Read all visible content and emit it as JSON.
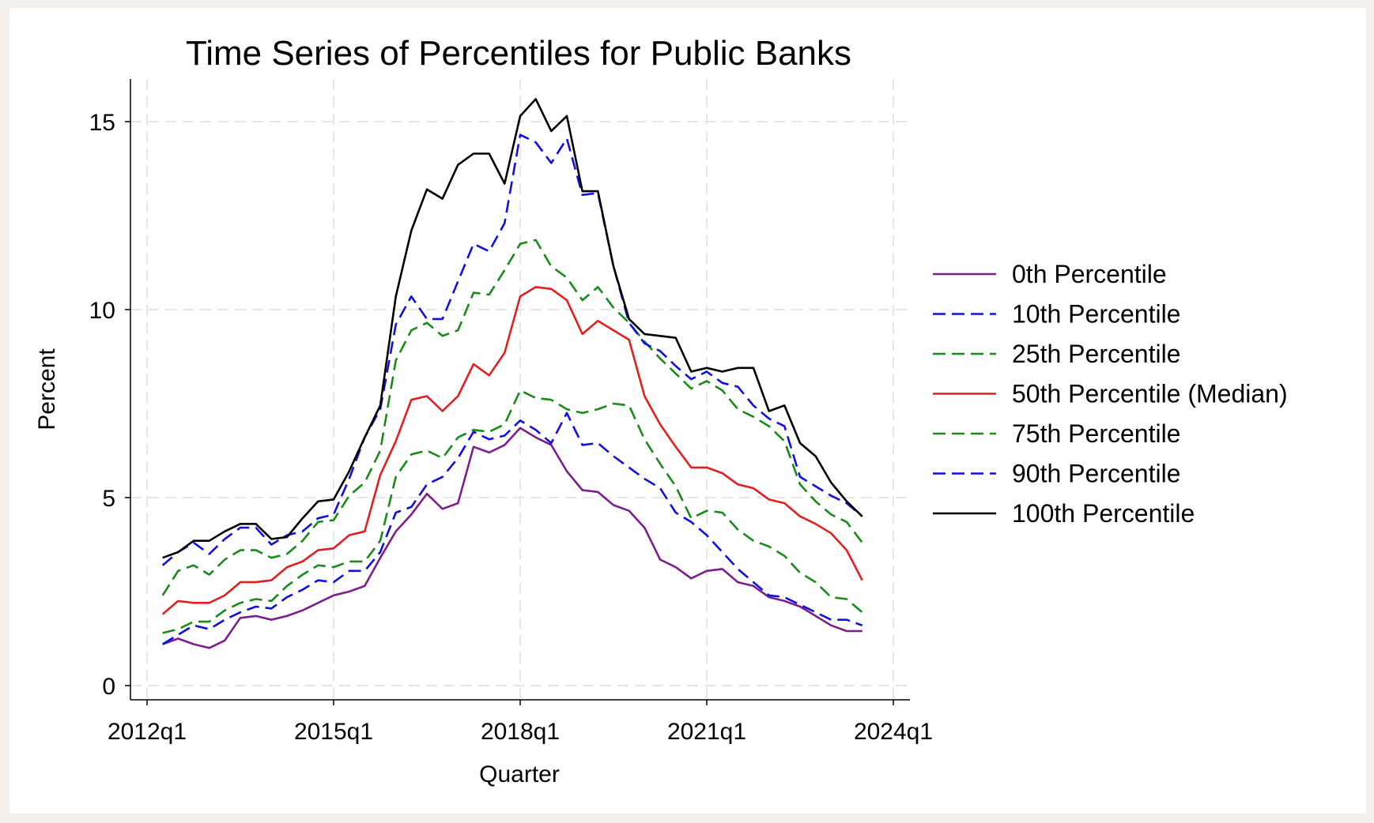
{
  "colors": {
    "background": "#f3f0ed",
    "card": "#ffffff",
    "grid": "#e6e6e6",
    "axis": "#000000"
  },
  "chart_data": {
    "type": "line",
    "title": "Time Series of Percentiles for Public Banks",
    "xlabel": "Quarter",
    "ylabel": "Percent",
    "xlim": [
      "2012q1",
      "2024q1"
    ],
    "ylim": [
      0,
      15.5
    ],
    "x_ticks": [
      "2012q1",
      "2015q1",
      "2018q1",
      "2021q1",
      "2024q1"
    ],
    "y_ticks": [
      0,
      5,
      10,
      15
    ],
    "grid": true,
    "legend_position": "right",
    "x": [
      "2012q2",
      "2012q3",
      "2012q4",
      "2013q1",
      "2013q2",
      "2013q3",
      "2013q4",
      "2014q1",
      "2014q2",
      "2014q3",
      "2014q4",
      "2015q1",
      "2015q2",
      "2015q3",
      "2015q4",
      "2016q1",
      "2016q2",
      "2016q3",
      "2016q4",
      "2017q1",
      "2017q2",
      "2017q3",
      "2017q4",
      "2018q1",
      "2018q2",
      "2018q3",
      "2018q4",
      "2019q1",
      "2019q2",
      "2019q3",
      "2019q4",
      "2020q1",
      "2020q2",
      "2020q3",
      "2020q4",
      "2021q1",
      "2021q2",
      "2021q3",
      "2021q4",
      "2022q1",
      "2022q2",
      "2022q3",
      "2022q4",
      "2023q1",
      "2023q2",
      "2023q3"
    ],
    "series": [
      {
        "name": "0th Percentile",
        "color": "#7b1f8c",
        "dash": "solid",
        "values": [
          1.1,
          1.25,
          1.1,
          1.0,
          1.2,
          1.8,
          1.85,
          1.75,
          1.85,
          2.0,
          2.2,
          2.4,
          2.5,
          2.65,
          3.4,
          4.1,
          4.55,
          5.1,
          4.7,
          4.85,
          6.35,
          6.2,
          6.4,
          6.85,
          6.6,
          6.4,
          5.7,
          5.2,
          5.15,
          4.8,
          4.65,
          4.2,
          3.35,
          3.15,
          2.85,
          3.05,
          3.1,
          2.75,
          2.65,
          2.35,
          2.25,
          2.1,
          1.85,
          1.6,
          1.45,
          1.45
        ]
      },
      {
        "name": "10th Percentile",
        "color": "#1010e0",
        "dash": "dashed",
        "values": [
          1.1,
          1.35,
          1.6,
          1.5,
          1.75,
          1.95,
          2.1,
          2.05,
          2.35,
          2.55,
          2.8,
          2.75,
          3.05,
          3.05,
          3.55,
          4.6,
          4.75,
          5.35,
          5.55,
          6.05,
          6.75,
          6.55,
          6.65,
          7.05,
          6.8,
          6.45,
          7.25,
          6.4,
          6.45,
          6.1,
          5.8,
          5.5,
          5.25,
          4.6,
          4.35,
          4.0,
          3.55,
          3.1,
          2.75,
          2.4,
          2.35,
          2.15,
          1.95,
          1.75,
          1.75,
          1.6
        ]
      },
      {
        "name": "25th Percentile",
        "color": "#1a8a1a",
        "dash": "dashed",
        "values": [
          1.4,
          1.5,
          1.7,
          1.7,
          2.0,
          2.2,
          2.3,
          2.25,
          2.65,
          2.95,
          3.2,
          3.15,
          3.3,
          3.3,
          3.85,
          5.55,
          6.15,
          6.25,
          6.05,
          6.6,
          6.8,
          6.75,
          6.95,
          7.85,
          7.65,
          7.6,
          7.35,
          7.25,
          7.35,
          7.5,
          7.45,
          6.55,
          5.9,
          5.3,
          4.45,
          4.65,
          4.6,
          4.15,
          3.85,
          3.7,
          3.45,
          3.0,
          2.75,
          2.35,
          2.3,
          1.95
        ]
      },
      {
        "name": "50th Percentile (Median)",
        "color": "#e02020",
        "dash": "solid",
        "values": [
          1.9,
          2.25,
          2.2,
          2.2,
          2.4,
          2.75,
          2.75,
          2.8,
          3.15,
          3.3,
          3.6,
          3.65,
          4.0,
          4.1,
          5.6,
          6.5,
          7.6,
          7.7,
          7.3,
          7.7,
          8.55,
          8.25,
          8.85,
          10.35,
          10.6,
          10.55,
          10.25,
          9.35,
          9.7,
          9.45,
          9.2,
          7.7,
          6.95,
          6.35,
          5.8,
          5.8,
          5.65,
          5.35,
          5.25,
          4.95,
          4.85,
          4.5,
          4.3,
          4.05,
          3.6,
          2.8
        ]
      },
      {
        "name": "75th Percentile",
        "color": "#1a8a1a",
        "dash": "dashed",
        "values": [
          2.4,
          3.05,
          3.2,
          2.95,
          3.35,
          3.6,
          3.6,
          3.4,
          3.5,
          3.85,
          4.35,
          4.4,
          5.05,
          5.4,
          6.25,
          8.65,
          9.45,
          9.65,
          9.3,
          9.45,
          10.45,
          10.4,
          11.05,
          11.75,
          11.85,
          11.15,
          10.85,
          10.25,
          10.6,
          10.05,
          9.65,
          9.15,
          8.7,
          8.3,
          7.9,
          8.1,
          7.85,
          7.35,
          7.15,
          6.9,
          6.5,
          5.35,
          4.9,
          4.55,
          4.35,
          3.8
        ]
      },
      {
        "name": "90th Percentile",
        "color": "#1010e0",
        "dash": "dashed",
        "values": [
          3.2,
          3.55,
          3.8,
          3.5,
          3.9,
          4.2,
          4.2,
          3.75,
          4.0,
          4.1,
          4.45,
          4.55,
          5.5,
          6.6,
          7.35,
          9.6,
          10.35,
          9.75,
          9.75,
          10.75,
          11.75,
          11.55,
          12.3,
          14.65,
          14.45,
          13.9,
          14.55,
          13.05,
          13.1,
          11.15,
          9.65,
          9.1,
          8.9,
          8.5,
          8.15,
          8.35,
          8.05,
          7.95,
          7.45,
          7.1,
          6.9,
          5.55,
          5.3,
          5.05,
          4.85,
          4.5
        ]
      },
      {
        "name": "100th Percentile",
        "color": "#000000",
        "dash": "solid",
        "values": [
          3.4,
          3.55,
          3.85,
          3.85,
          4.1,
          4.3,
          4.3,
          3.9,
          3.95,
          4.45,
          4.9,
          4.95,
          5.7,
          6.6,
          7.45,
          10.35,
          12.1,
          13.2,
          12.95,
          13.85,
          14.15,
          14.15,
          13.35,
          15.15,
          15.6,
          14.75,
          15.15,
          13.15,
          13.15,
          11.15,
          9.75,
          9.35,
          9.3,
          9.25,
          8.35,
          8.45,
          8.35,
          8.45,
          8.45,
          7.3,
          7.45,
          6.45,
          6.1,
          5.4,
          4.9,
          4.5
        ]
      }
    ]
  }
}
